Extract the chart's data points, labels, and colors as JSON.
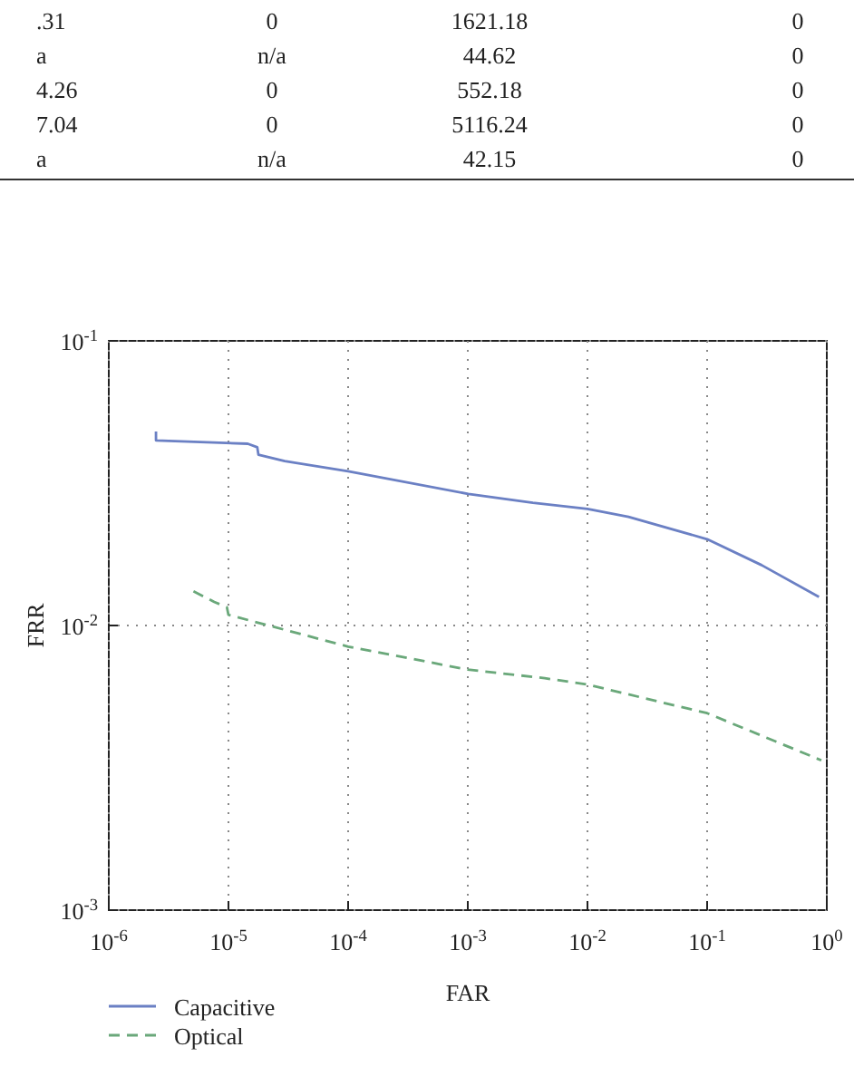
{
  "chart_data": [
    {
      "type": "other",
      "annotations": [
        ".31",
        "0",
        "1621.18",
        "0",
        "a",
        "n/a",
        "44.62",
        "0",
        "4.26",
        "0",
        "552.18",
        "0",
        "7.04",
        "0",
        "5116.24",
        "0",
        "a",
        "n/a",
        "42.15",
        "0"
      ]
    },
    {
      "type": "line",
      "xlabel": "FAR",
      "ylabel": "FRR",
      "log": "xy",
      "grid": true,
      "legend": "bottom",
      "xlim": [
        1e-06,
        1
      ],
      "ylim": [
        0.001,
        0.1
      ],
      "xticks": [
        {
          "value": 1e-06,
          "label": "10$^{-6}$"
        },
        {
          "value": 1e-05,
          "label": "10$^{-5}$"
        },
        {
          "value": 0.0001,
          "label": "10$^{-4}$"
        },
        {
          "value": 0.001,
          "label": "10$^{-3}$"
        },
        {
          "value": 0.01,
          "label": "10$^{-2}$"
        },
        {
          "value": 0.1,
          "label": "10$^{-1}$"
        },
        {
          "value": 1,
          "label": "10$^{0}$"
        }
      ],
      "yticks": [
        {
          "value": 0.001,
          "label": "10$^{-3}$"
        },
        {
          "value": 0.01,
          "label": "10$^{-2}$"
        },
        {
          "value": 0.1,
          "label": "10$^{-1}$"
        }
      ],
      "series": [
        {
          "name": "Capacitive",
          "color": "#6b80c4",
          "line_style": "solid",
          "x": [
            2.48e-06,
            2.48e-06,
            1.45e-05,
            1.74e-05,
            1.78e-05,
            2.95e-05,
            0.0001,
            0.00101,
            0.0035,
            0.01,
            0.022,
            0.1,
            0.285,
            0.86
          ],
          "values": [
            0.048,
            0.0447,
            0.0435,
            0.0423,
            0.0398,
            0.0378,
            0.0348,
            0.029,
            0.027,
            0.0257,
            0.0241,
            0.0201,
            0.0163,
            0.0126
          ]
        },
        {
          "name": "Optical",
          "color": "#6aa87a",
          "line_style": "dashed",
          "x": [
            5.1e-06,
            7.6e-06,
            9.7e-06,
            1e-05,
            0.0001,
            0.001,
            0.0044,
            0.01,
            0.1,
            0.9
          ],
          "values": [
            0.0132,
            0.0121,
            0.0116,
            0.0109,
            0.00843,
            0.007,
            0.00653,
            0.0062,
            0.00492,
            0.00336
          ]
        }
      ]
    }
  ]
}
